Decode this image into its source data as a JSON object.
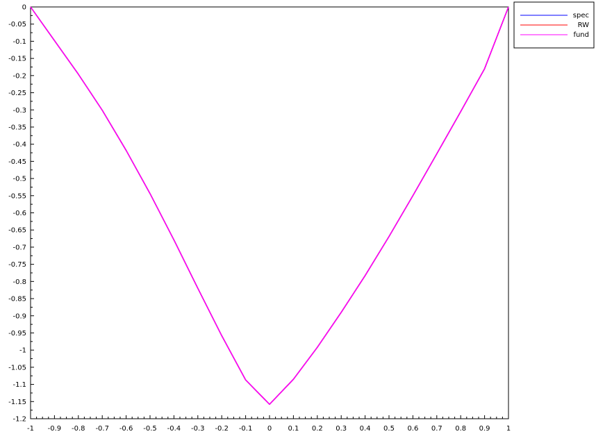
{
  "chart_data": {
    "type": "line",
    "title": "",
    "xlabel": "",
    "ylabel": "",
    "xlim": [
      -1,
      1
    ],
    "ylim": [
      -1.2,
      0
    ],
    "grid": false,
    "legend_position": "top-right, outside plot area",
    "x_ticks": [
      "-1",
      "-0.9",
      "-0.8",
      "-0.7",
      "-0.6",
      "-0.5",
      "-0.4",
      "-0.3",
      "-0.2",
      "-0.1",
      "0",
      "0.1",
      "0.2",
      "0.3",
      "0.4",
      "0.5",
      "0.6",
      "0.7",
      "0.8",
      "0.9",
      "1"
    ],
    "y_ticks": [
      "0",
      "-0.05",
      "-0.1",
      "-0.15",
      "-0.2",
      "-0.25",
      "-0.3",
      "-0.35",
      "-0.4",
      "-0.45",
      "-0.5",
      "-0.55",
      "-0.6",
      "-0.65",
      "-0.7",
      "-0.75",
      "-0.8",
      "-0.85",
      "-0.9",
      "-0.95",
      "-1",
      "-1.05",
      "-1.1",
      "-1.15",
      "-1.2"
    ],
    "x": [
      -1,
      -0.9,
      -0.8,
      -0.7,
      -0.6,
      -0.5,
      -0.4,
      -0.3,
      -0.2,
      -0.1,
      0,
      0.1,
      0.2,
      0.3,
      0.4,
      0.5,
      0.6,
      0.7,
      0.8,
      0.9,
      1
    ],
    "series": [
      {
        "name": "spec",
        "color": "#0000ff",
        "values": [
          0,
          -0.098,
          -0.196,
          -0.301,
          -0.418,
          -0.544,
          -0.679,
          -0.82,
          -0.958,
          -1.087,
          -1.158,
          -1.085,
          -0.992,
          -0.89,
          -0.783,
          -0.669,
          -0.55,
          -0.428,
          -0.305,
          -0.18,
          0
        ]
      },
      {
        "name": "RW",
        "color": "#ff0000",
        "values": [
          0,
          -0.098,
          -0.196,
          -0.301,
          -0.418,
          -0.544,
          -0.679,
          -0.82,
          -0.958,
          -1.087,
          -1.158,
          -1.085,
          -0.992,
          -0.89,
          -0.783,
          -0.669,
          -0.55,
          -0.428,
          -0.305,
          -0.18,
          0
        ]
      },
      {
        "name": "fund",
        "color": "#ff00ff",
        "values": [
          0,
          -0.098,
          -0.196,
          -0.301,
          -0.418,
          -0.544,
          -0.679,
          -0.82,
          -0.958,
          -1.087,
          -1.158,
          -1.085,
          -0.992,
          -0.89,
          -0.783,
          -0.669,
          -0.55,
          -0.428,
          -0.305,
          -0.18,
          0
        ]
      }
    ]
  }
}
